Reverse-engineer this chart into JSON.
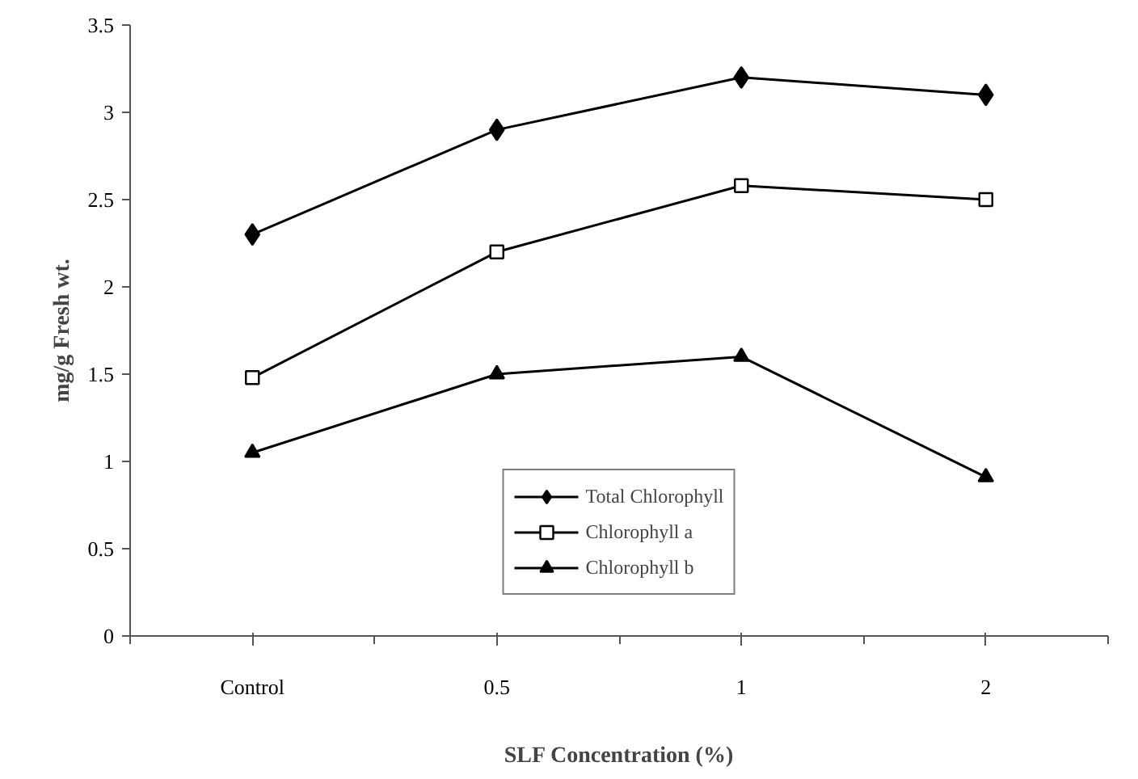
{
  "chart_data": {
    "type": "line",
    "xlabel": "SLF Concentration (%)",
    "ylabel": "mg/g Fresh wt.",
    "categories": [
      "Control",
      "0.5",
      "1",
      "2"
    ],
    "ylim": [
      0,
      3.5
    ],
    "yticks": [
      0,
      0.5,
      1,
      1.5,
      2,
      2.5,
      3,
      3.5
    ],
    "grid": false,
    "legend": "bottom",
    "line_style": "solid",
    "series": [
      {
        "name": "Total Chlorophyll",
        "color": "#000000",
        "marker": "diamond",
        "values": [
          2.3,
          2.9,
          3.2,
          3.1
        ]
      },
      {
        "name": "Chlorophyll a",
        "color": "#000000",
        "marker": "square",
        "values": [
          1.48,
          2.2,
          2.58,
          2.5
        ]
      },
      {
        "name": "Chlorophyll b",
        "color": "#000000",
        "marker": "triangle",
        "values": [
          1.05,
          1.5,
          1.6,
          0.91
        ]
      }
    ]
  }
}
